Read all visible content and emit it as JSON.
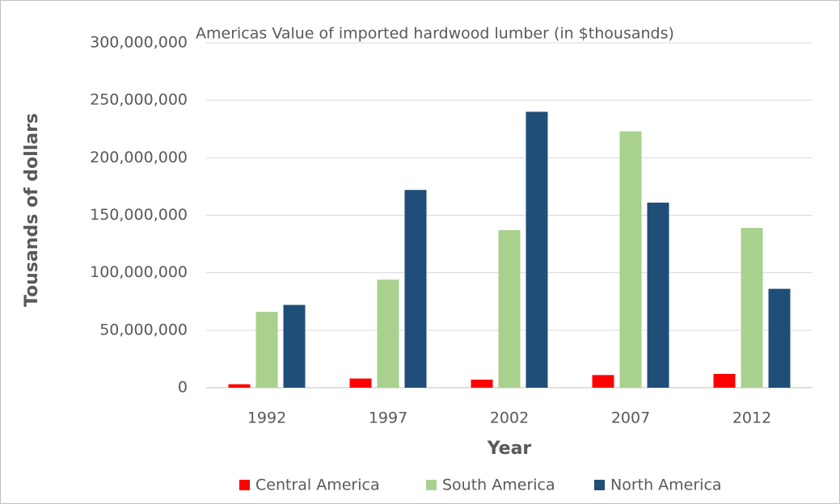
{
  "chart_data": {
    "type": "bar",
    "title": "Americas Value of imported hardwood lumber (in $thousands)",
    "x_label": "Year",
    "y_label": "Tousands of dollars",
    "categories": [
      "1992",
      "1997",
      "2002",
      "2007",
      "2012"
    ],
    "series": [
      {
        "name": "Central America",
        "color": "#ff0000",
        "values": [
          3000000,
          8000000,
          7000000,
          11000000,
          12000000
        ]
      },
      {
        "name": "South America",
        "color": "#a9d18e",
        "values": [
          66000000,
          94000000,
          137000000,
          223000000,
          139000000
        ]
      },
      {
        "name": "North America",
        "color": "#1f4e79",
        "values": [
          72000000,
          172000000,
          240000000,
          161000000,
          86000000
        ]
      }
    ],
    "ylim": [
      0,
      300000000
    ],
    "yticks": [
      0,
      {
        "value": 50000000,
        "label": "50,000,000"
      },
      {
        "value": 100000000,
        "label": "100,000,000"
      },
      {
        "value": 150000000,
        "label": "150,000,000"
      },
      {
        "value": 200000000,
        "label": "200,000,000"
      },
      {
        "value": 250000000,
        "label": "250,000,000"
      },
      {
        "value": 300000000,
        "label": "300,000,000"
      }
    ],
    "grid": true,
    "legend": "bottom"
  }
}
